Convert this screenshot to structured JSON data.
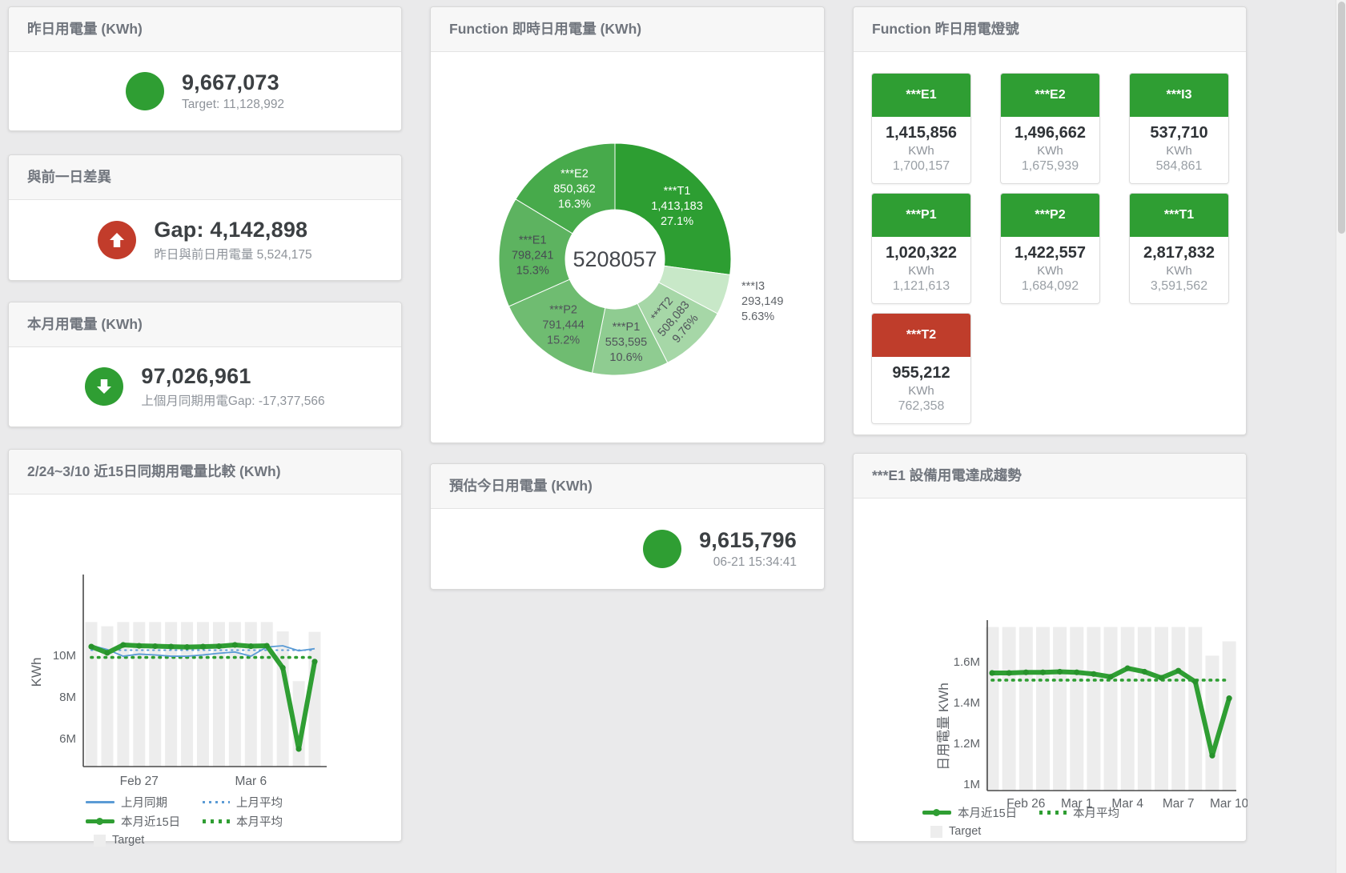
{
  "colors": {
    "green": "#2f9e33",
    "green_dark": "#27922b",
    "red": "#c23c2b",
    "blue": "#5b9bd5",
    "target_bar": "#ededed",
    "text_dark": "#3c4043",
    "text_gray": "#8e939a",
    "title_gray": "#70757d"
  },
  "cards": {
    "yesterday": {
      "title": "昨日用電量 (KWh)",
      "value": "9,667,073",
      "subtitle": "Target: 11,128,992"
    },
    "day_gap": {
      "title": "與前一日差異",
      "value": "Gap: 4,142,898",
      "subtitle": "昨日與前日用電量 5,524,175"
    },
    "month": {
      "title": "本月用電量 (KWh)",
      "value": "97,026,961",
      "subtitle": "上個月同期用電Gap: -17,377,566"
    },
    "realtime": {
      "title": "Function 即時日用電量 (KWh)"
    },
    "forecast": {
      "title": "預估今日用電量 (KWh)",
      "value": "9,615,796",
      "subtitle": "06-21 15:34:41"
    },
    "compare": {
      "title": "2/24~3/10 近15日同期用電量比較 (KWh)"
    },
    "lights": {
      "title": "Function 昨日用電燈號",
      "tiles": [
        {
          "name": "***E1",
          "value": "1,415,856",
          "unit": "KWh",
          "target": "1,700,157",
          "status": "green"
        },
        {
          "name": "***E2",
          "value": "1,496,662",
          "unit": "KWh",
          "target": "1,675,939",
          "status": "green"
        },
        {
          "name": "***I3",
          "value": "537,710",
          "unit": "KWh",
          "target": "584,861",
          "status": "green"
        },
        {
          "name": "***P1",
          "value": "1,020,322",
          "unit": "KWh",
          "target": "1,121,613",
          "status": "green"
        },
        {
          "name": "***P2",
          "value": "1,422,557",
          "unit": "KWh",
          "target": "1,684,092",
          "status": "green"
        },
        {
          "name": "***T1",
          "value": "2,817,832",
          "unit": "KWh",
          "target": "3,591,562",
          "status": "green"
        },
        {
          "name": "***T2",
          "value": "955,212",
          "unit": "KWh",
          "target": "762,358",
          "status": "red"
        }
      ]
    },
    "trend": {
      "title": "***E1 設備用電達成趨勢"
    }
  },
  "chart_data": [
    {
      "type": "pie",
      "title": "Function 即時日用電量 (KWh)",
      "center_total": "5208057",
      "slices": [
        {
          "name": "***T1",
          "value": 1413183,
          "value_label": "1,413,183",
          "pct_label": "27.1%",
          "color": "#2d9e32",
          "label_color": "#ffffff"
        },
        {
          "name": "***I3",
          "value": 293149,
          "value_label": "293,149",
          "pct_label": "5.63%",
          "color": "#c8e8c8",
          "label_color": "#5f6368",
          "label_outside": true
        },
        {
          "name": "***T2",
          "value": 508083,
          "value_label": "508,083",
          "pct_label": "9.76%",
          "color": "#a6d7a7",
          "label_color": "#50545a",
          "label_rotate": -50
        },
        {
          "name": "***P1",
          "value": 553595,
          "value_label": "553,595",
          "pct_label": "10.6%",
          "color": "#8fcc91",
          "label_color": "#50545a"
        },
        {
          "name": "***P2",
          "value": 791444,
          "value_label": "791,444",
          "pct_label": "15.2%",
          "color": "#6fbc71",
          "label_color": "#50545a"
        },
        {
          "name": "***E1",
          "value": 798241,
          "value_label": "798,241",
          "pct_label": "15.3%",
          "color": "#5db360",
          "label_color": "#474c52"
        },
        {
          "name": "***E2",
          "value": 850362,
          "value_label": "850,362",
          "pct_label": "16.3%",
          "color": "#47aa4b",
          "label_color": "#ffffff"
        }
      ]
    },
    {
      "type": "line",
      "title": "2/24~3/10 近15日同期用電量比較 (KWh)",
      "ylabel": "KWh",
      "ylim": [
        4650000,
        11900000
      ],
      "yticks": [
        {
          "value": 6000000,
          "label": "6M"
        },
        {
          "value": 8000000,
          "label": "8M"
        },
        {
          "value": 10000000,
          "label": "10M"
        }
      ],
      "xticks": [
        {
          "index": 3,
          "label": "Feb 27"
        },
        {
          "index": 10,
          "label": "Mar 6"
        }
      ],
      "x_count": 15,
      "target_label": "Target",
      "target_bars": [
        11600000,
        11400000,
        11600000,
        11600000,
        11600000,
        11600000,
        11600000,
        11600000,
        11600000,
        11600000,
        11600000,
        11600000,
        11150000,
        8760000,
        11130000
      ],
      "series": [
        {
          "name": "上月同期",
          "color": "#5b9bd5",
          "style": "line",
          "values": [
            10480000,
            10280000,
            9960000,
            10060000,
            10020000,
            9960000,
            9960000,
            10020000,
            10100000,
            10160000,
            9960000,
            10400000,
            10460000,
            10220000,
            10320000
          ]
        },
        {
          "name": "上月平均",
          "color": "#5b9bd5",
          "style": "dotted",
          "constant": 10250000
        },
        {
          "name": "本月近15日",
          "color": "#2f9e33",
          "style": "thick",
          "values": [
            10420000,
            10120000,
            10500000,
            10460000,
            10440000,
            10420000,
            10400000,
            10420000,
            10440000,
            10500000,
            10440000,
            10460000,
            9400000,
            5500000,
            9700000
          ]
        },
        {
          "name": "本月平均",
          "color": "#2f9e33",
          "style": "dotted-bold",
          "constant": 9900000
        }
      ]
    },
    {
      "type": "line",
      "title": "***E1 設備用電達成趨勢",
      "ylabel": "日用電量 KWh",
      "ylim": [
        968000,
        1780000
      ],
      "yticks": [
        {
          "value": 1000000,
          "label": "1M"
        },
        {
          "value": 1200000,
          "label": "1.2M"
        },
        {
          "value": 1400000,
          "label": "1.4M"
        },
        {
          "value": 1600000,
          "label": "1.6M"
        }
      ],
      "xticks": [
        {
          "index": 2,
          "label": "Feb 26"
        },
        {
          "index": 5,
          "label": "Mar 1"
        },
        {
          "index": 8,
          "label": "Mar 4"
        },
        {
          "index": 11,
          "label": "Mar 7"
        },
        {
          "index": 14,
          "label": "Mar 10"
        }
      ],
      "x_count": 15,
      "target_label": "Target",
      "target_bars": [
        1770000,
        1770000,
        1770000,
        1770000,
        1770000,
        1770000,
        1770000,
        1770000,
        1770000,
        1770000,
        1770000,
        1770000,
        1770000,
        1630000,
        1700000
      ],
      "series": [
        {
          "name": "本月近15日",
          "color": "#2f9e33",
          "style": "thick",
          "values": [
            1545000,
            1545000,
            1548000,
            1548000,
            1551000,
            1548000,
            1540000,
            1526000,
            1568000,
            1551000,
            1521000,
            1556000,
            1502000,
            1140000,
            1421000
          ]
        },
        {
          "name": "本月平均",
          "color": "#2f9e33",
          "style": "dotted-bold",
          "constant": 1510000
        }
      ]
    }
  ]
}
